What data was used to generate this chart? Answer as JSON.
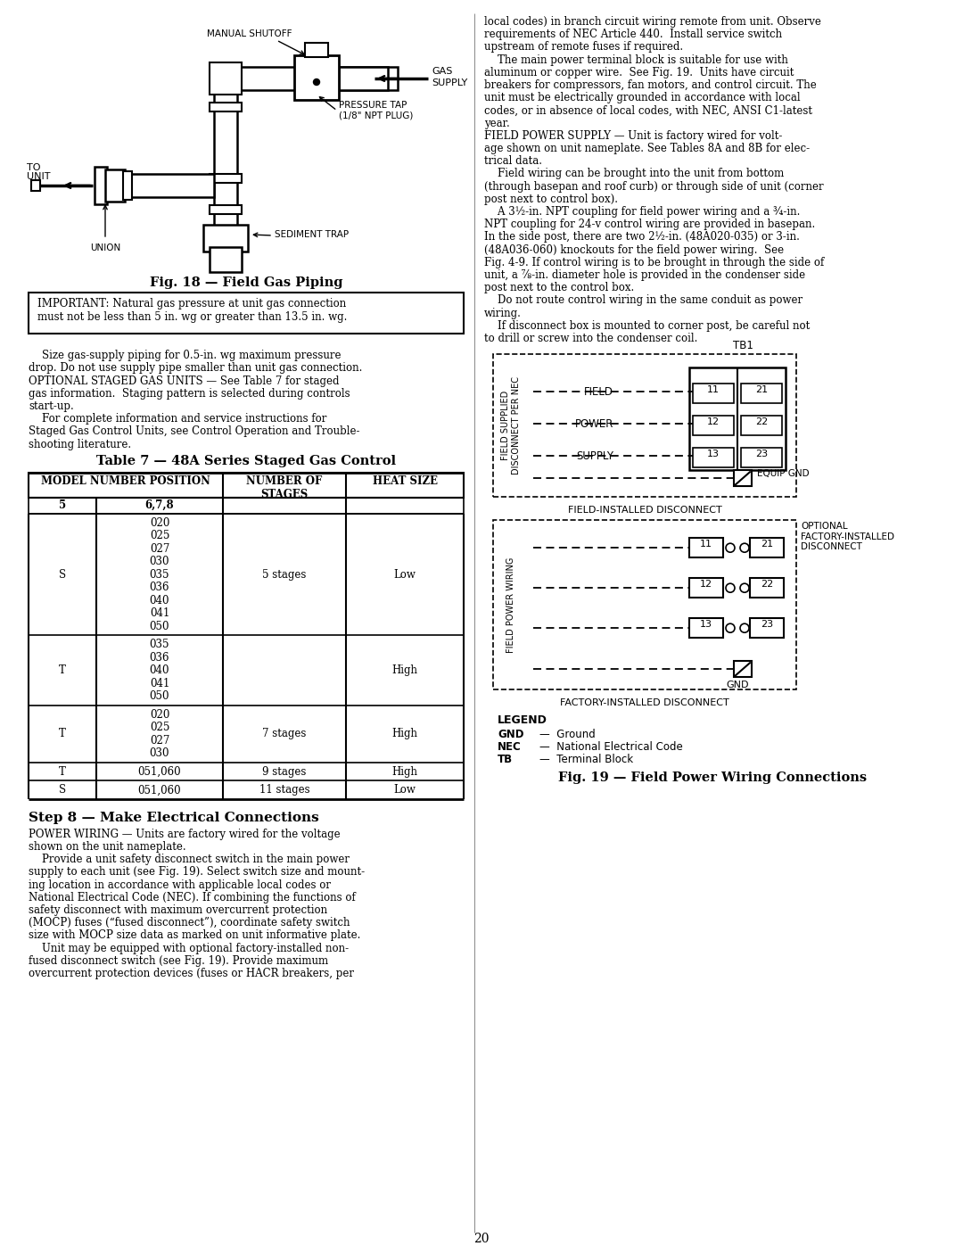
{
  "page_number": "20",
  "bg_color": "#ffffff",
  "fig18_caption": "Fig. 18 — Field Gas Piping",
  "fig19_caption": "Fig. 19 — Field Power Wiring Connections",
  "table_title": "Table 7 — 48A Series Staged Gas Control",
  "step8_title": "Step 8 — Make Electrical Connections",
  "important_text_line1": "IMPORTANT: Natural gas pressure at unit gas connection",
  "important_text_line2": "must not be less than 5 in. wg or greater than 13.5 in. wg.",
  "left_body_lines": [
    "",
    "    Size gas-supply piping for 0.5-in. wg maximum pressure",
    "drop. Do not use supply pipe smaller than unit gas connection.",
    "OPTIONAL STAGED GAS UNITS — See Table 7 for staged",
    "gas information.  Staging pattern is selected during controls",
    "start-up.",
    "    For complete information and service instructions for",
    "Staged Gas Control Units, see Control Operation and Trouble-",
    "shooting literature."
  ],
  "right_col_lines": [
    "local codes) in branch circuit wiring remote from unit. Observe",
    "requirements of NEC Article 440.  Install service switch",
    "upstream of remote fuses if required.",
    "    The main power terminal block is suitable for use with",
    "aluminum or copper wire.  See Fig. 19.  Units have circuit",
    "breakers for compressors, fan motors, and control circuit. The",
    "unit must be electrically grounded in accordance with local",
    "codes, or in absence of local codes, with NEC, ANSI C1-latest",
    "year.",
    "FIELD POWER SUPPLY — Unit is factory wired for volt-",
    "age shown on unit nameplate. See Tables 8A and 8B for elec-",
    "trical data.",
    "    Field wiring can be brought into the unit from bottom",
    "(through basepan and roof curb) or through side of unit (corner",
    "post next to control box).",
    "    A 3½-in. NPT coupling for field power wiring and a ¾-in.",
    "NPT coupling for 24-v control wiring are provided in basepan.",
    "In the side post, there are two 2½-in. (48A020-035) or 3-in.",
    "(48A036-060) knockouts for the field power wiring.  See",
    "Fig. 4-9. If control wiring is to be brought in through the side of",
    "unit, a ⅞-in. diameter hole is provided in the condenser side",
    "post next to the control box.",
    "    Do not route control wiring in the same conduit as power",
    "wiring.",
    "    If disconnect box is mounted to corner post, be careful not",
    "to drill or screw into the condenser coil."
  ],
  "step8_lines": [
    "POWER WIRING — Units are factory wired for the voltage",
    "shown on the unit nameplate.",
    "    Provide a unit safety disconnect switch in the main power",
    "supply to each unit (see Fig. 19). Select switch size and mount-",
    "ing location in accordance with applicable local codes or",
    "National Electrical Code (NEC). If combining the functions of",
    "safety disconnect with maximum overcurrent protection",
    "(MOCP) fuses (“fused disconnect”), coordinate safety switch",
    "size with MOCP size data as marked on unit informative plate.",
    "    Unit may be equipped with optional factory-installed non-",
    "fused disconnect switch (see Fig. 19). Provide maximum",
    "overcurrent protection devices (fuses or HACR breakers, per"
  ],
  "table_rows": [
    [
      "S",
      [
        "020",
        "025",
        "027",
        "030",
        "035",
        "036",
        "040",
        "041",
        "050"
      ],
      "5 stages",
      "Low"
    ],
    [
      "T",
      [
        "035",
        "036",
        "040",
        "041",
        "050"
      ],
      "",
      "High"
    ],
    [
      "T",
      [
        "020",
        "025",
        "027",
        "030"
      ],
      "7 stages",
      "High"
    ],
    [
      "T",
      [
        "051,060"
      ],
      "9 stages",
      "High"
    ],
    [
      "S",
      [
        "051,060"
      ],
      "11 stages",
      "Low"
    ]
  ],
  "legend_items": [
    [
      "GND",
      "Ground"
    ],
    [
      "NEC",
      "National Electrical Code"
    ],
    [
      "TB",
      "Terminal Block"
    ]
  ]
}
